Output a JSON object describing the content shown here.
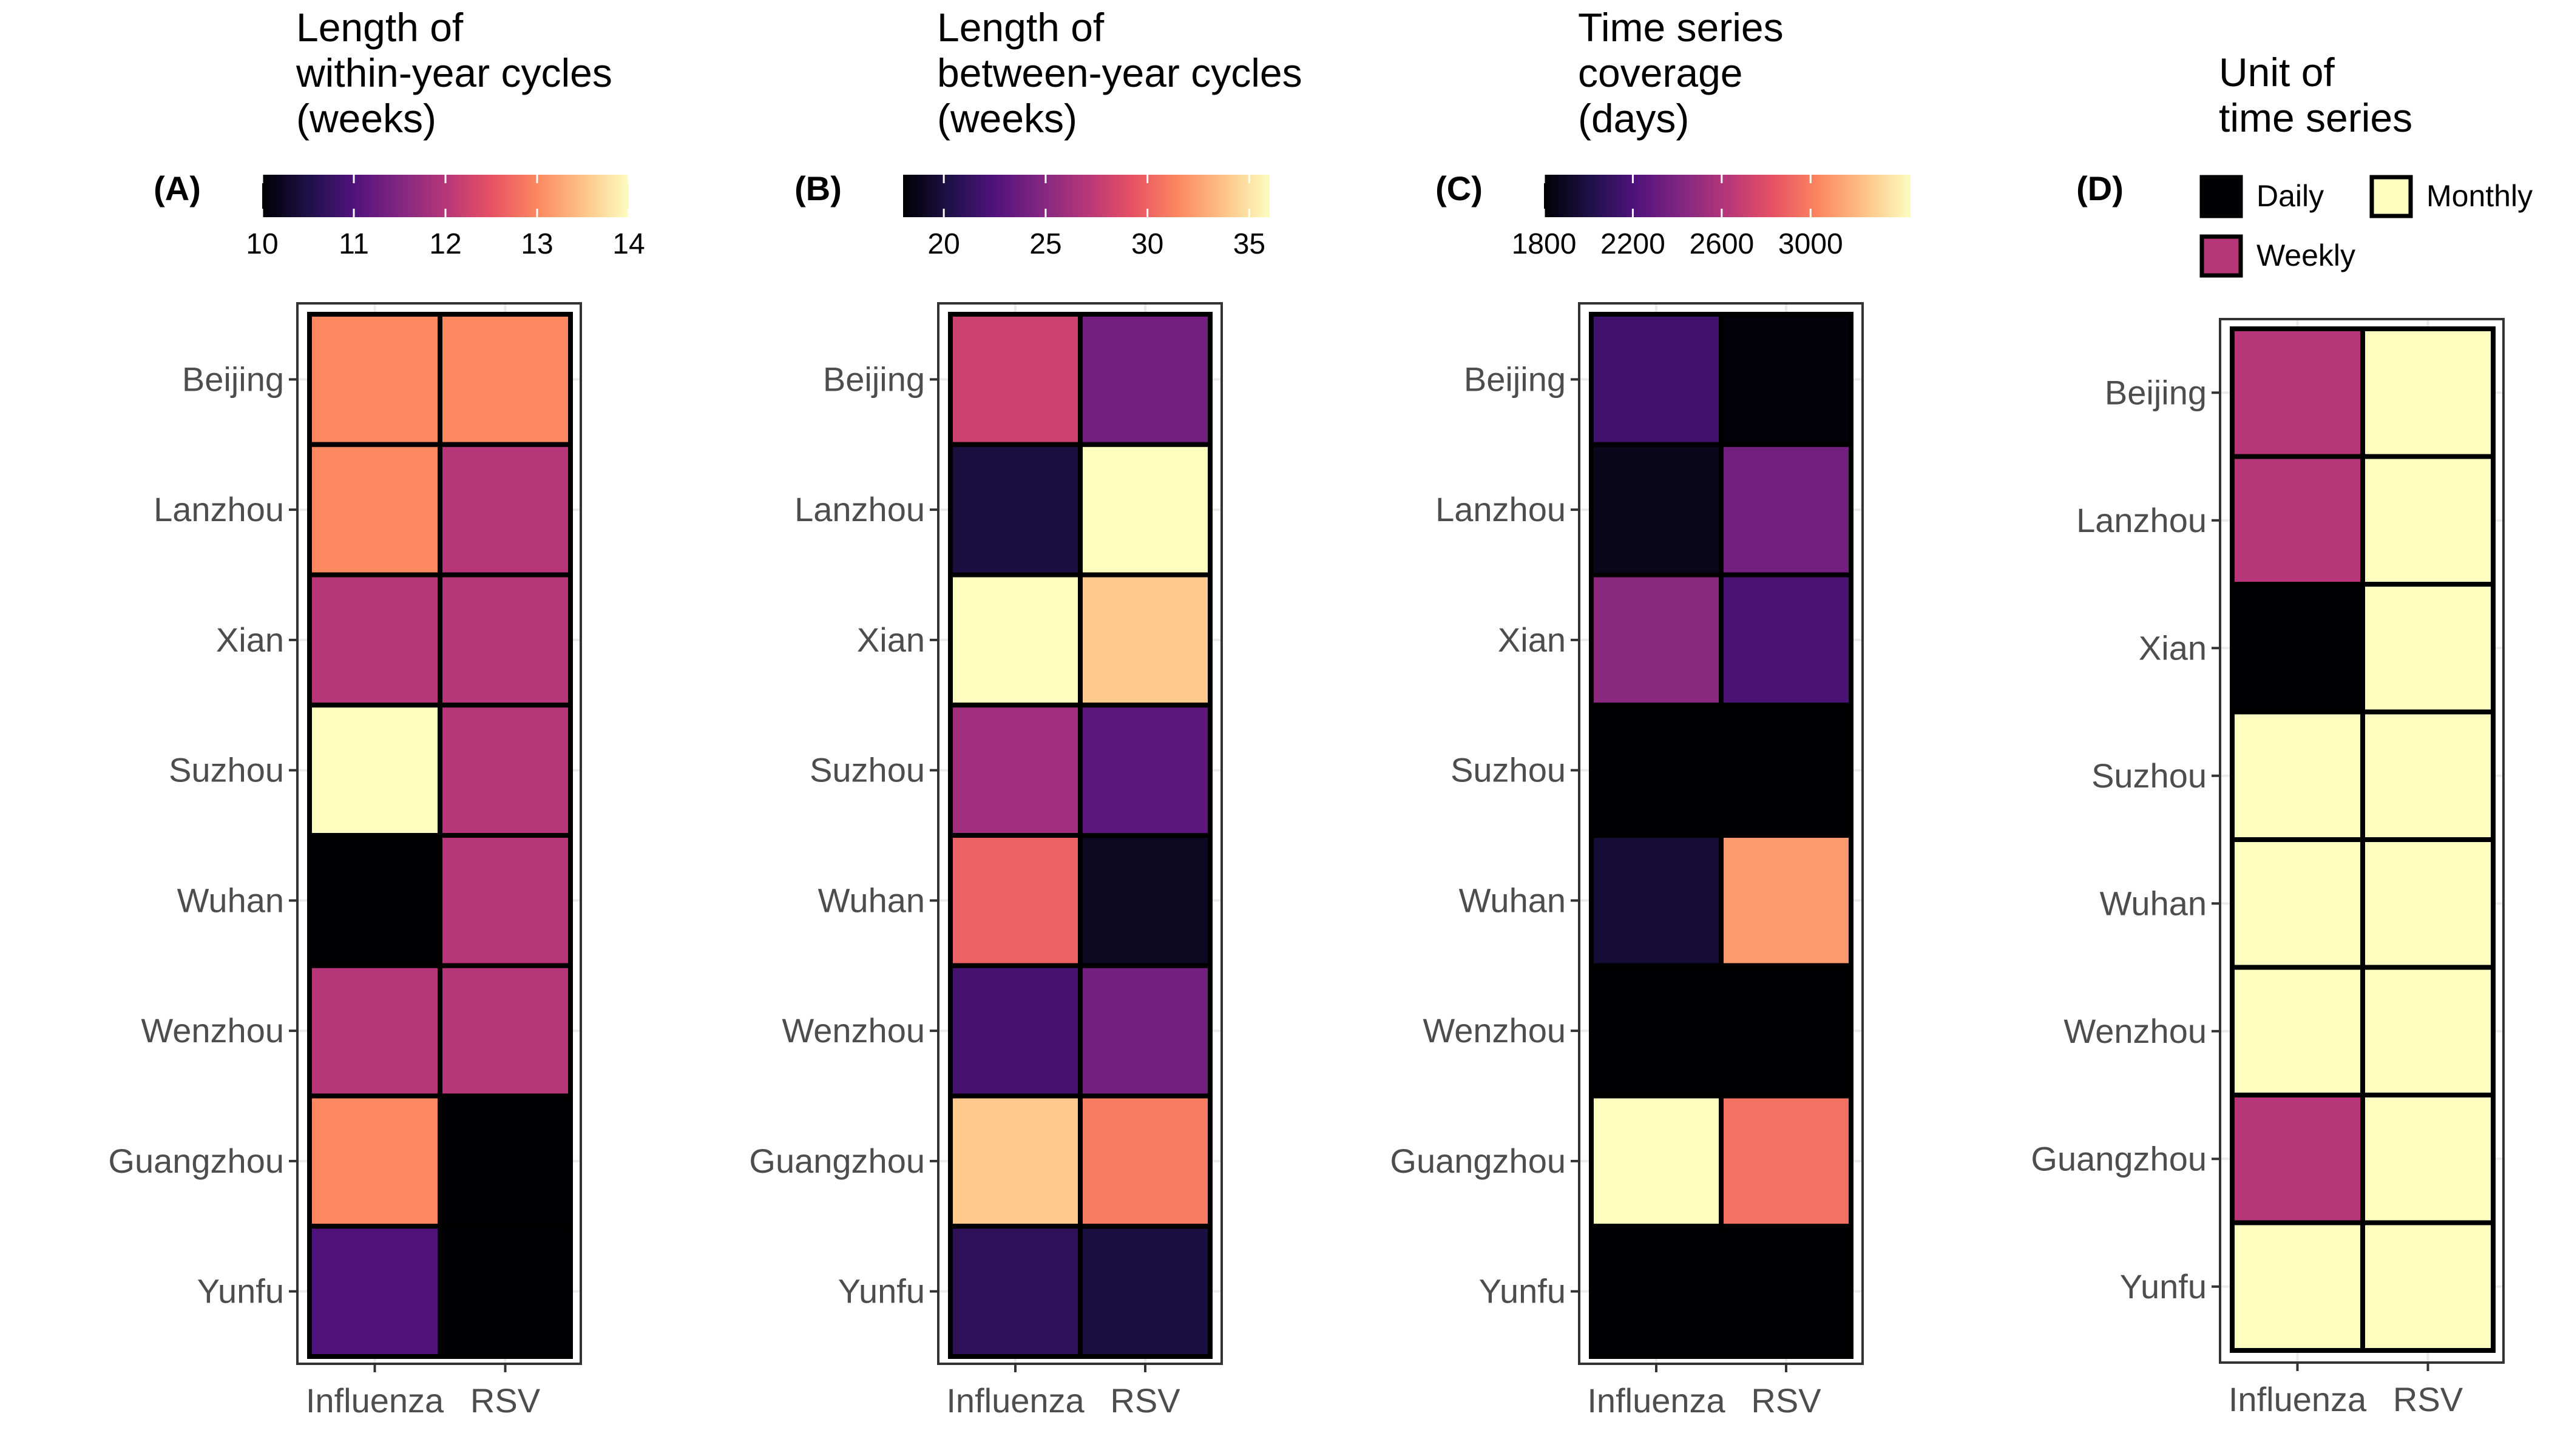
{
  "chart_data": [
    {
      "type": "heatmap",
      "panel": "(A)",
      "legend_title": [
        "Length of",
        "within-year cycles",
        "(weeks)"
      ],
      "legend_ticks": [
        "10",
        "11",
        "12",
        "13",
        "14"
      ],
      "legend_range": [
        10,
        14
      ],
      "x_categories": [
        "Influenza",
        "RSV"
      ],
      "y_categories": [
        "Beijing",
        "Lanzhou",
        "Xian",
        "Suzhou",
        "Wuhan",
        "Wenzhou",
        "Guangzhou",
        "Yunfu"
      ],
      "values": [
        [
          13,
          13
        ],
        [
          13,
          12
        ],
        [
          12,
          12
        ],
        [
          14,
          12
        ],
        [
          10,
          12
        ],
        [
          12,
          12
        ],
        [
          13,
          10
        ],
        [
          11,
          10
        ]
      ]
    },
    {
      "type": "heatmap",
      "panel": "(B)",
      "legend_title": [
        "Length of",
        "between-year cycles",
        "(weeks)"
      ],
      "legend_ticks": [
        "20",
        "25",
        "30",
        "35"
      ],
      "legend_range": [
        18,
        36
      ],
      "x_categories": [
        "Influenza",
        "RSV"
      ],
      "y_categories": [
        "Beijing",
        "Lanzhou",
        "Xian",
        "Suzhou",
        "Wuhan",
        "Wenzhou",
        "Guangzhou",
        "Yunfu"
      ],
      "values": [
        [
          28,
          24
        ],
        [
          20,
          36
        ],
        [
          36,
          34
        ],
        [
          26,
          23
        ],
        [
          30,
          19
        ],
        [
          22,
          24
        ],
        [
          34,
          31
        ],
        [
          21,
          20
        ]
      ]
    },
    {
      "type": "heatmap",
      "panel": "(C)",
      "legend_title": [
        "Time series",
        "coverage",
        "(days)"
      ],
      "legend_ticks": [
        "1800",
        "2200",
        "2600",
        "3000"
      ],
      "legend_range": [
        1800,
        3450
      ],
      "x_categories": [
        "Influenza",
        "RSV"
      ],
      "y_categories": [
        "Beijing",
        "Lanzhou",
        "Xian",
        "Suzhou",
        "Wuhan",
        "Wenzhou",
        "Guangzhou",
        "Yunfu"
      ],
      "values": [
        [
          2150,
          1820
        ],
        [
          1870,
          2350
        ],
        [
          2450,
          2180
        ],
        [
          1800,
          1800
        ],
        [
          1950,
          3100
        ],
        [
          1800,
          1800
        ],
        [
          3450,
          2950
        ],
        [
          1800,
          1800
        ]
      ]
    },
    {
      "type": "heatmap",
      "panel": "(D)",
      "legend_title": [
        "Unit of",
        "time series"
      ],
      "legend_items": [
        {
          "label": "Daily",
          "color": "#000004"
        },
        {
          "label": "Monthly",
          "color": "#FCFDBF"
        },
        {
          "label": "Weekly",
          "color": "#B63679"
        }
      ],
      "x_categories": [
        "Influenza",
        "RSV"
      ],
      "y_categories": [
        "Beijing",
        "Lanzhou",
        "Xian",
        "Suzhou",
        "Wuhan",
        "Wenzhou",
        "Guangzhou",
        "Yunfu"
      ],
      "values": [
        [
          "Weekly",
          "Monthly"
        ],
        [
          "Weekly",
          "Monthly"
        ],
        [
          "Daily",
          "Monthly"
        ],
        [
          "Monthly",
          "Monthly"
        ],
        [
          "Monthly",
          "Monthly"
        ],
        [
          "Monthly",
          "Monthly"
        ],
        [
          "Weekly",
          "Monthly"
        ],
        [
          "Monthly",
          "Monthly"
        ]
      ]
    }
  ],
  "colormap": "magma",
  "colors": {
    "stops": [
      "#000004",
      "#1D1147",
      "#51127C",
      "#822681",
      "#B63679",
      "#E65164",
      "#FB8861",
      "#FEC287",
      "#FCFDBF"
    ],
    "tile_border": "#000000",
    "panel_border": "#333333",
    "axis_text": "#4D4D4D",
    "tick": "#333333",
    "grid": "#EBEBEB",
    "title_text": "#000000"
  }
}
